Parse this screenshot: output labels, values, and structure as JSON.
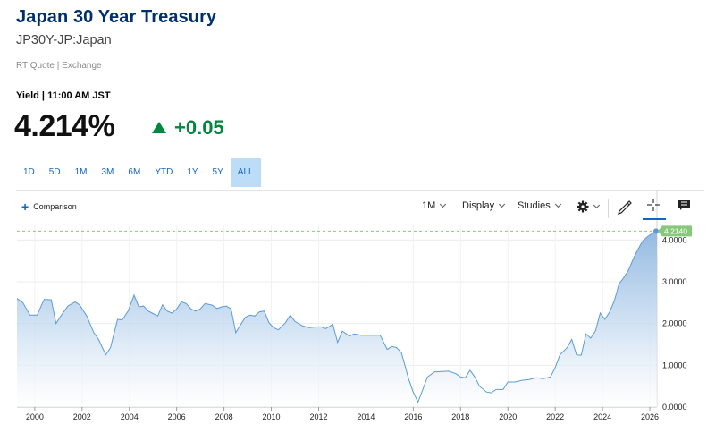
{
  "header": {
    "title": "Japan 30 Year Treasury",
    "symbol": "JP30Y-JP:Japan",
    "quote_type": "RT Quote | Exchange",
    "yield_time": "Yield | 11:00 AM JST",
    "price": "4.214%",
    "change": "+0.05"
  },
  "ranges": [
    "1D",
    "5D",
    "1M",
    "3M",
    "6M",
    "YTD",
    "1Y",
    "5Y",
    "ALL"
  ],
  "active_range": "ALL",
  "toolbar": {
    "comparison": "Comparison",
    "interval": "1M",
    "display": "Display",
    "studies": "Studies"
  },
  "colors": {
    "title": "#002f6c",
    "up": "#00863d",
    "line": "#5b9bd5",
    "last_badge": "#86c97a",
    "active_range_bg": "#bcdcf8"
  },
  "chart_data": {
    "type": "area",
    "x_ticks": [
      "2000",
      "2002",
      "2004",
      "2006",
      "2008",
      "2010",
      "2012",
      "2014",
      "2016",
      "2018",
      "2020",
      "2022",
      "2024",
      "2026"
    ],
    "y_ticks": [
      "0.0000",
      "1.0000",
      "2.0000",
      "3.0000",
      "4.0000"
    ],
    "last_value_label": "4.2140",
    "xlim": [
      1999.25,
      2026.3
    ],
    "ylim": [
      0,
      4.35
    ],
    "x": [
      1999.25,
      1999.5,
      1999.8,
      2000.1,
      2000.4,
      2000.7,
      2000.9,
      2001.1,
      2001.4,
      2001.7,
      2001.9,
      2002.2,
      2002.5,
      2002.7,
      2003.0,
      2003.2,
      2003.5,
      2003.7,
      2003.95,
      2004.2,
      2004.4,
      2004.6,
      2004.8,
      2005.0,
      2005.2,
      2005.4,
      2005.6,
      2005.8,
      2006.0,
      2006.2,
      2006.4,
      2006.6,
      2006.8,
      2007.0,
      2007.2,
      2007.5,
      2007.7,
      2007.9,
      2008.1,
      2008.3,
      2008.5,
      2008.7,
      2008.9,
      2009.1,
      2009.3,
      2009.5,
      2009.7,
      2009.9,
      2010.1,
      2010.3,
      2010.6,
      2010.8,
      2011.0,
      2011.3,
      2011.6,
      2011.9,
      2012.1,
      2012.3,
      2012.6,
      2012.8,
      2013.0,
      2013.3,
      2013.5,
      2013.8,
      2014.0,
      2014.3,
      2014.6,
      2014.9,
      2015.1,
      2015.3,
      2015.5,
      2015.8,
      2016.0,
      2016.2,
      2016.4,
      2016.6,
      2016.9,
      2017.2,
      2017.5,
      2017.8,
      2018.0,
      2018.2,
      2018.4,
      2018.6,
      2018.8,
      2019.1,
      2019.3,
      2019.5,
      2019.8,
      2020.0,
      2020.3,
      2020.6,
      2020.9,
      2021.2,
      2021.5,
      2021.8,
      2022.0,
      2022.2,
      2022.5,
      2022.7,
      2022.9,
      2023.1,
      2023.3,
      2023.5,
      2023.7,
      2023.9,
      2024.1,
      2024.3,
      2024.5,
      2024.7,
      2024.9,
      2025.1,
      2025.3,
      2025.5,
      2025.7,
      2025.9,
      2026.1,
      2026.3
    ],
    "y": [
      2.6,
      2.5,
      2.2,
      2.2,
      2.58,
      2.57,
      2.0,
      2.18,
      2.42,
      2.52,
      2.45,
      2.18,
      1.78,
      1.62,
      1.25,
      1.42,
      2.1,
      2.09,
      2.3,
      2.68,
      2.4,
      2.42,
      2.3,
      2.24,
      2.18,
      2.45,
      2.3,
      2.25,
      2.35,
      2.52,
      2.48,
      2.35,
      2.3,
      2.35,
      2.48,
      2.44,
      2.36,
      2.4,
      2.42,
      2.35,
      1.78,
      1.97,
      2.15,
      2.2,
      2.18,
      2.28,
      2.3,
      2.02,
      1.9,
      1.85,
      2.02,
      2.2,
      2.05,
      1.95,
      1.9,
      1.92,
      1.92,
      1.88,
      1.98,
      1.55,
      1.82,
      1.7,
      1.75,
      1.72,
      1.72,
      1.72,
      1.72,
      1.38,
      1.45,
      1.42,
      1.3,
      0.68,
      0.35,
      0.12,
      0.42,
      0.72,
      0.84,
      0.85,
      0.86,
      0.8,
      0.72,
      0.7,
      0.88,
      0.72,
      0.5,
      0.36,
      0.34,
      0.42,
      0.42,
      0.6,
      0.6,
      0.64,
      0.66,
      0.7,
      0.68,
      0.72,
      0.95,
      1.25,
      1.42,
      1.62,
      1.25,
      1.24,
      1.75,
      1.65,
      1.82,
      2.25,
      2.1,
      2.28,
      2.55,
      2.95,
      3.1,
      3.28,
      3.55,
      3.78,
      3.98,
      4.08,
      4.16,
      4.214
    ]
  }
}
